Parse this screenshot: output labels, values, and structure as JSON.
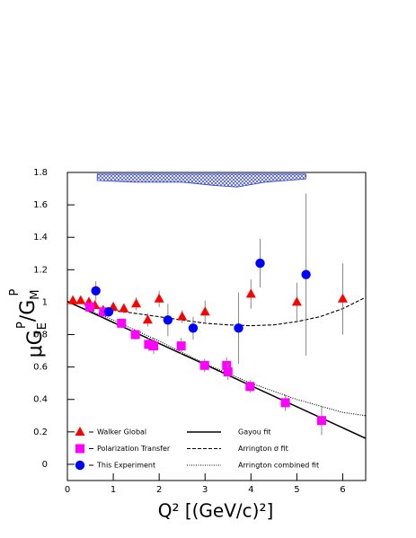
{
  "chart_data": {
    "type": "scatter",
    "x_label": "Q² [(GeV/c)²]",
    "y_label_parts": [
      "μG",
      "E",
      "P",
      "/G",
      "M",
      "P"
    ],
    "xlim": [
      0,
      6.5
    ],
    "xticks": [
      0,
      1,
      2,
      3,
      4,
      5,
      6
    ],
    "ylim": [
      -0.1,
      1.8
    ],
    "yticks": [
      0,
      0.2,
      0.4,
      0.6,
      0.8,
      1,
      1.2,
      1.4,
      1.6,
      1.8
    ],
    "series": [
      {
        "name": "Walker Global",
        "color": "#ff0000",
        "marker": "triangle",
        "x": [
          0.12,
          0.29,
          0.47,
          0.6,
          0.78,
          1.0,
          1.23,
          1.5,
          1.75,
          2.0,
          2.5,
          3.0,
          4.0,
          5.0,
          6.0
        ],
        "values": [
          1.01,
          1.01,
          1.0,
          0.98,
          0.95,
          0.97,
          0.96,
          0.99,
          0.89,
          1.02,
          0.91,
          0.94,
          1.05,
          1.0,
          1.02
        ],
        "errors": [
          0.02,
          0.02,
          0.02,
          0.02,
          0.03,
          0.03,
          0.03,
          0.04,
          0.04,
          0.05,
          0.04,
          0.07,
          0.09,
          0.12,
          0.22
        ]
      },
      {
        "name": "Polarization Transfer",
        "color": "#ff00ff",
        "marker": "square",
        "x": [
          0.49,
          0.79,
          1.18,
          1.48,
          1.77,
          1.88,
          2.48,
          2.99,
          3.47,
          3.5,
          3.98,
          4.75,
          5.54
        ],
        "values": [
          0.97,
          0.94,
          0.87,
          0.8,
          0.74,
          0.73,
          0.73,
          0.61,
          0.61,
          0.57,
          0.48,
          0.38,
          0.27
        ],
        "errors": [
          0.02,
          0.02,
          0.03,
          0.03,
          0.04,
          0.05,
          0.05,
          0.04,
          0.05,
          0.05,
          0.04,
          0.05,
          0.09
        ]
      },
      {
        "name": "This Experiment",
        "color": "#0000ff",
        "marker": "circle",
        "x": [
          0.62,
          0.9,
          2.19,
          2.74,
          3.73,
          4.2,
          5.2
        ],
        "values": [
          1.07,
          0.94,
          0.89,
          0.84,
          0.84,
          1.24,
          1.17
        ],
        "errors": [
          0.06,
          0.03,
          0.1,
          0.07,
          0.22,
          0.15,
          0.5
        ]
      }
    ],
    "fits": [
      {
        "name": "Gayou fit",
        "style": "solid",
        "x": [
          0,
          6.5
        ],
        "values": [
          1.005,
          0.16
        ]
      },
      {
        "name": "Arrington σ fit",
        "style": "dashed",
        "x": [
          0.4,
          1,
          1.5,
          2,
          2.5,
          3,
          3.5,
          4,
          4.5,
          5,
          5.5,
          6,
          6.5
        ],
        "values": [
          0.98,
          0.95,
          0.93,
          0.91,
          0.89,
          0.87,
          0.86,
          0.855,
          0.86,
          0.88,
          0.91,
          0.96,
          1.03
        ]
      },
      {
        "name": "Arrington combined fit",
        "style": "dotted",
        "x": [
          0,
          1,
          2,
          3,
          4,
          5,
          6,
          6.5
        ],
        "values": [
          1.0,
          0.89,
          0.76,
          0.62,
          0.5,
          0.4,
          0.32,
          0.3
        ]
      }
    ],
    "band": {
      "color": "#3344cc",
      "x": [
        0.65,
        1.5,
        2.5,
        3.2,
        3.7,
        4.3,
        5.2
      ],
      "upper": [
        1.79,
        1.79,
        1.79,
        1.79,
        1.79,
        1.79,
        1.79
      ],
      "lower": [
        1.75,
        1.74,
        1.74,
        1.72,
        1.71,
        1.74,
        1.76
      ]
    }
  }
}
